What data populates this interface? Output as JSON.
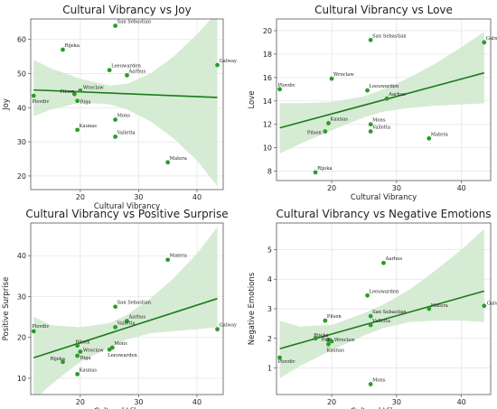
{
  "style": {
    "point_color": "#2a9d2a",
    "line_color": "#1a7a1a",
    "band_color": "#cfe8cc",
    "grid_color": "#e3e3e3",
    "axis_color": "#555555"
  },
  "chart_data": [
    {
      "type": "scatter",
      "title": "Cultural Vibrancy vs Joy",
      "xlabel": "Cultural Vibrancy",
      "ylabel": "Joy",
      "xlim": [
        11.5,
        44.5
      ],
      "ylim": [
        16,
        66
      ],
      "xticks": [
        20,
        30,
        40
      ],
      "yticks": [
        20,
        30,
        40,
        50,
        60
      ],
      "grid": true,
      "regression": {
        "x": [
          12,
          43.5
        ],
        "y": [
          45.2,
          43.0
        ]
      },
      "band": {
        "x": [
          12,
          15,
          20,
          25,
          28,
          32,
          36,
          40,
          43.5
        ],
        "lower": [
          37.5,
          39.5,
          41.5,
          41.0,
          39.5,
          36.0,
          31.0,
          24.5,
          17.0
        ],
        "upper": [
          54.0,
          51.5,
          48.5,
          46.5,
          47.0,
          50.0,
          55.0,
          61.5,
          68.0
        ]
      },
      "points": [
        {
          "label": "San Sebastian",
          "x": 26,
          "y": 64
        },
        {
          "label": "Rijeka",
          "x": 17,
          "y": 57
        },
        {
          "label": "Leeuwarden",
          "x": 25,
          "y": 51
        },
        {
          "label": "Aarhus",
          "x": 28,
          "y": 49.5
        },
        {
          "label": "Galway",
          "x": 43.5,
          "y": 52.5
        },
        {
          "label": "Wroclaw",
          "x": 20,
          "y": 45
        },
        {
          "label": "Pilsen",
          "x": 19,
          "y": 44
        },
        {
          "label": "Plovdiv",
          "x": 12,
          "y": 43.5
        },
        {
          "label": "Riga",
          "x": 19.5,
          "y": 42
        },
        {
          "label": "Mons",
          "x": 26,
          "y": 36.5
        },
        {
          "label": "Kaunas",
          "x": 19.5,
          "y": 33.5
        },
        {
          "label": "Valletta",
          "x": 26,
          "y": 31.5
        },
        {
          "label": "Matera",
          "x": 35,
          "y": 24
        }
      ]
    },
    {
      "type": "scatter",
      "title": "Cultural Vibrancy vs Love",
      "xlabel": "Cultural Vibrancy",
      "ylabel": "Love",
      "xlim": [
        11.5,
        44.5
      ],
      "ylim": [
        7.2,
        21.0
      ],
      "xticks": [
        20,
        30,
        40
      ],
      "yticks": [
        8,
        10,
        12,
        14,
        16,
        18,
        20
      ],
      "grid": true,
      "regression": {
        "x": [
          12,
          43.5
        ],
        "y": [
          11.7,
          16.4
        ]
      },
      "band": {
        "x": [
          12,
          15,
          20,
          25,
          28,
          32,
          36,
          40,
          43.5
        ],
        "lower": [
          9.5,
          10.3,
          11.5,
          12.6,
          13.1,
          13.4,
          13.6,
          13.7,
          13.8
        ],
        "upper": [
          13.8,
          13.8,
          13.9,
          14.4,
          15.0,
          16.0,
          17.2,
          18.6,
          19.9
        ]
      },
      "points": [
        {
          "label": "San Sebastian",
          "x": 26,
          "y": 19.2
        },
        {
          "label": "Galway",
          "x": 43.5,
          "y": 19.0
        },
        {
          "label": "Wroclaw",
          "x": 20,
          "y": 15.9
        },
        {
          "label": "Plovdiv",
          "x": 12,
          "y": 15.0
        },
        {
          "label": "Leeuwarden",
          "x": 25.5,
          "y": 14.9
        },
        {
          "label": "Aarhus",
          "x": 28.5,
          "y": 14.2
        },
        {
          "label": "Kaunas",
          "x": 19.5,
          "y": 12.1
        },
        {
          "label": "Mons",
          "x": 26,
          "y": 12.0
        },
        {
          "label": "Pilsen",
          "x": 19,
          "y": 11.4
        },
        {
          "label": "Valletta",
          "x": 26,
          "y": 11.4
        },
        {
          "label": "Matera",
          "x": 35,
          "y": 10.8
        },
        {
          "label": "Rijeka",
          "x": 17.5,
          "y": 7.9
        }
      ]
    },
    {
      "type": "scatter",
      "title": "Cultural Vibrancy vs Positive Surprise",
      "xlabel": "Cultural Vibrancy",
      "ylabel": "Positive Surprise",
      "xlim": [
        11.5,
        44.5
      ],
      "ylim": [
        6,
        48
      ],
      "xticks": [
        20,
        30,
        40
      ],
      "yticks": [
        10,
        20,
        30,
        40
      ],
      "grid": true,
      "regression": {
        "x": [
          12,
          43.5
        ],
        "y": [
          15.0,
          29.5
        ]
      },
      "band": {
        "x": [
          12,
          15,
          20,
          25,
          28,
          32,
          36,
          40,
          43.5
        ],
        "lower": [
          4.5,
          8.5,
          14.0,
          17.5,
          19.5,
          21.0,
          21.5,
          22.0,
          22.5
        ],
        "upper": [
          25.0,
          23.0,
          22.5,
          23.5,
          25.5,
          29.5,
          34.5,
          40.5,
          47.0
        ]
      },
      "points": [
        {
          "label": "Matera",
          "x": 35,
          "y": 39
        },
        {
          "label": "San Sebastian",
          "x": 26,
          "y": 27.5
        },
        {
          "label": "Aarhus",
          "x": 28,
          "y": 24
        },
        {
          "label": "Valletta",
          "x": 26,
          "y": 22.5
        },
        {
          "label": "Galway",
          "x": 43.5,
          "y": 22
        },
        {
          "label": "Plovdiv",
          "x": 12,
          "y": 21.5
        },
        {
          "label": "Mons",
          "x": 25.5,
          "y": 17.5
        },
        {
          "label": "Leeuwarden",
          "x": 25,
          "y": 17
        },
        {
          "label": "Pilsen",
          "x": 19.5,
          "y": 18
        },
        {
          "label": "Wroclaw",
          "x": 20,
          "y": 16.5
        },
        {
          "label": "Riga",
          "x": 19.5,
          "y": 15.5
        },
        {
          "label": "Rijeka",
          "x": 17,
          "y": 14
        },
        {
          "label": "Kaunas",
          "x": 19.5,
          "y": 11
        }
      ]
    },
    {
      "type": "scatter",
      "title": "Cultural Vibrancy vs Negative Emotions",
      "xlabel": "Cultural Vibrancy",
      "ylabel": "Negative Emotions",
      "xlim": [
        11.5,
        44.5
      ],
      "ylim": [
        0.1,
        5.9
      ],
      "xticks": [
        20,
        30,
        40
      ],
      "yticks": [
        1,
        2,
        3,
        4,
        5
      ],
      "grid": true,
      "regression": {
        "x": [
          12,
          43.5
        ],
        "y": [
          1.65,
          3.6
        ]
      },
      "band": {
        "x": [
          12,
          15,
          20,
          25,
          28,
          32,
          36,
          40,
          43.5
        ],
        "lower": [
          0.65,
          1.05,
          1.6,
          2.1,
          2.35,
          2.55,
          2.6,
          2.6,
          2.55
        ],
        "upper": [
          2.6,
          2.4,
          2.45,
          2.85,
          3.15,
          3.65,
          4.3,
          5.0,
          5.7
        ]
      },
      "points": [
        {
          "label": "Aarhus",
          "x": 28,
          "y": 4.55
        },
        {
          "label": "Leeuwarden",
          "x": 25.5,
          "y": 3.45
        },
        {
          "label": "Galway",
          "x": 43.5,
          "y": 3.1
        },
        {
          "label": "Matera",
          "x": 35,
          "y": 3.0
        },
        {
          "label": "San Sebastian",
          "x": 26,
          "y": 2.75
        },
        {
          "label": "Pilsen",
          "x": 19,
          "y": 2.6
        },
        {
          "label": "Valletta",
          "x": 26,
          "y": 2.45
        },
        {
          "label": "Rijeka",
          "x": 17.5,
          "y": 2.0
        },
        {
          "label": "Riga",
          "x": 19.5,
          "y": 1.95
        },
        {
          "label": "Wroclaw",
          "x": 20,
          "y": 1.9
        },
        {
          "label": "Kaunas",
          "x": 19.5,
          "y": 1.8
        },
        {
          "label": "Plovdiv",
          "x": 12,
          "y": 1.35
        },
        {
          "label": "Mons",
          "x": 26,
          "y": 0.45
        }
      ]
    }
  ]
}
